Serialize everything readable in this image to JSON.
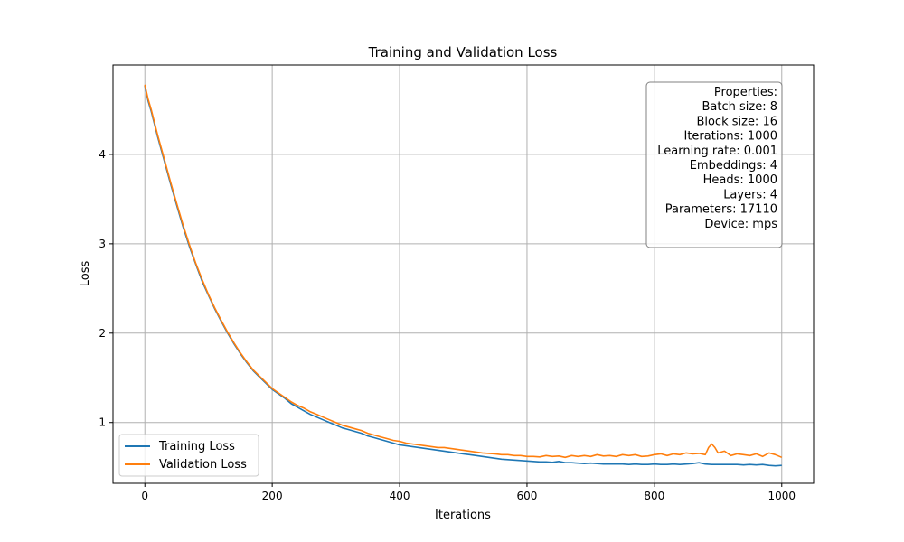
{
  "chart_data": {
    "type": "line",
    "title": "Training and Validation Loss",
    "xlabel": "Iterations",
    "ylabel": "Loss",
    "xlim": [
      -50,
      1050
    ],
    "ylim": [
      0.32,
      5.0
    ],
    "xticks": [
      0,
      200,
      400,
      600,
      800,
      1000
    ],
    "yticks": [
      1,
      2,
      3,
      4
    ],
    "grid": true,
    "legend_position": "lower-left",
    "series": [
      {
        "name": "Training Loss",
        "color": "#1f77b4",
        "x": [
          0,
          5,
          10,
          20,
          30,
          40,
          50,
          60,
          70,
          80,
          90,
          100,
          110,
          120,
          130,
          140,
          150,
          160,
          170,
          180,
          190,
          200,
          210,
          220,
          230,
          240,
          250,
          260,
          270,
          280,
          290,
          300,
          310,
          320,
          330,
          340,
          350,
          360,
          370,
          380,
          390,
          400,
          410,
          420,
          430,
          440,
          450,
          460,
          470,
          480,
          490,
          500,
          510,
          520,
          530,
          540,
          550,
          560,
          570,
          580,
          590,
          600,
          610,
          620,
          630,
          640,
          650,
          660,
          670,
          680,
          690,
          700,
          710,
          720,
          730,
          740,
          750,
          760,
          770,
          780,
          790,
          800,
          810,
          820,
          830,
          840,
          850,
          860,
          870,
          880,
          890,
          900,
          910,
          920,
          930,
          940,
          950,
          960,
          970,
          980,
          990,
          1000
        ],
        "y": [
          4.77,
          4.6,
          4.48,
          4.2,
          3.94,
          3.68,
          3.43,
          3.19,
          2.97,
          2.77,
          2.58,
          2.42,
          2.27,
          2.13,
          2.0,
          1.88,
          1.77,
          1.67,
          1.58,
          1.51,
          1.44,
          1.37,
          1.32,
          1.27,
          1.21,
          1.17,
          1.13,
          1.09,
          1.06,
          1.03,
          1.0,
          0.97,
          0.94,
          0.92,
          0.9,
          0.88,
          0.85,
          0.83,
          0.81,
          0.79,
          0.77,
          0.75,
          0.74,
          0.73,
          0.72,
          0.71,
          0.7,
          0.69,
          0.68,
          0.67,
          0.66,
          0.65,
          0.64,
          0.63,
          0.62,
          0.61,
          0.6,
          0.59,
          0.585,
          0.58,
          0.575,
          0.57,
          0.565,
          0.56,
          0.56,
          0.555,
          0.565,
          0.55,
          0.55,
          0.545,
          0.54,
          0.545,
          0.54,
          0.535,
          0.535,
          0.535,
          0.535,
          0.53,
          0.535,
          0.53,
          0.53,
          0.535,
          0.53,
          0.53,
          0.535,
          0.53,
          0.535,
          0.54,
          0.55,
          0.535,
          0.53,
          0.53,
          0.53,
          0.53,
          0.53,
          0.525,
          0.53,
          0.525,
          0.53,
          0.52,
          0.515,
          0.52
        ]
      },
      {
        "name": "Validation Loss",
        "color": "#ff7f0e",
        "x": [
          0,
          5,
          10,
          20,
          30,
          40,
          50,
          60,
          70,
          80,
          90,
          100,
          110,
          120,
          130,
          140,
          150,
          160,
          170,
          180,
          190,
          200,
          210,
          220,
          230,
          240,
          250,
          260,
          270,
          280,
          290,
          300,
          310,
          320,
          330,
          340,
          350,
          360,
          370,
          380,
          390,
          400,
          410,
          420,
          430,
          440,
          450,
          460,
          470,
          480,
          490,
          500,
          510,
          520,
          530,
          540,
          550,
          560,
          570,
          580,
          590,
          600,
          610,
          620,
          630,
          640,
          650,
          660,
          670,
          680,
          690,
          700,
          710,
          720,
          730,
          740,
          750,
          760,
          770,
          780,
          790,
          800,
          810,
          820,
          830,
          840,
          850,
          860,
          870,
          880,
          885,
          890,
          895,
          900,
          910,
          920,
          930,
          940,
          950,
          960,
          970,
          980,
          990,
          1000
        ],
        "y": [
          4.78,
          4.62,
          4.5,
          4.22,
          3.96,
          3.7,
          3.45,
          3.21,
          2.99,
          2.78,
          2.6,
          2.43,
          2.28,
          2.14,
          2.01,
          1.89,
          1.78,
          1.68,
          1.59,
          1.52,
          1.45,
          1.38,
          1.33,
          1.28,
          1.23,
          1.19,
          1.16,
          1.12,
          1.09,
          1.06,
          1.03,
          1.0,
          0.97,
          0.95,
          0.93,
          0.91,
          0.88,
          0.86,
          0.84,
          0.82,
          0.8,
          0.79,
          0.77,
          0.76,
          0.75,
          0.74,
          0.73,
          0.72,
          0.72,
          0.71,
          0.7,
          0.69,
          0.68,
          0.67,
          0.66,
          0.655,
          0.65,
          0.64,
          0.64,
          0.63,
          0.63,
          0.62,
          0.62,
          0.615,
          0.63,
          0.62,
          0.625,
          0.61,
          0.63,
          0.62,
          0.63,
          0.62,
          0.64,
          0.625,
          0.63,
          0.62,
          0.64,
          0.63,
          0.64,
          0.62,
          0.625,
          0.64,
          0.65,
          0.63,
          0.65,
          0.64,
          0.66,
          0.65,
          0.655,
          0.64,
          0.72,
          0.76,
          0.72,
          0.66,
          0.68,
          0.63,
          0.65,
          0.64,
          0.63,
          0.65,
          0.62,
          0.66,
          0.64,
          0.61
        ]
      }
    ]
  },
  "properties_box": {
    "lines": [
      "Properties:",
      "Batch size: 8",
      "Block size: 16",
      "Iterations: 1000",
      "Learning rate: 0.001",
      "Embeddings: 4",
      "Heads: 1000",
      "Layers: 4",
      "Parameters: 17110",
      "Device: mps"
    ]
  }
}
